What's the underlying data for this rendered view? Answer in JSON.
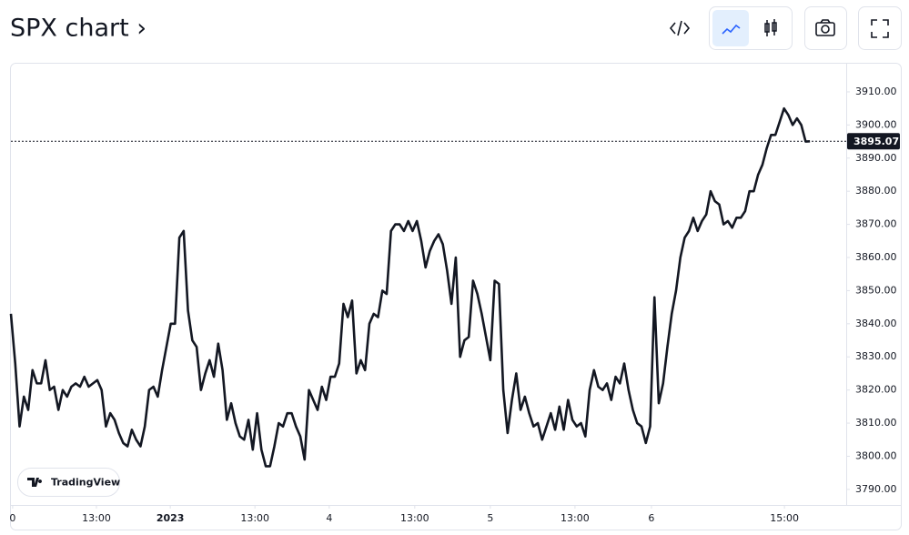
{
  "header": {
    "title": "SPX chart ›"
  },
  "watermark": "TradingView",
  "chart_data": {
    "type": "line",
    "series": [
      {
        "name": "SPX",
        "color": "#131722",
        "values": [
          3843,
          3828,
          3809,
          3818,
          3814,
          3826,
          3822,
          3822,
          3829,
          3820,
          3821,
          3814,
          3820,
          3818,
          3821,
          3822,
          3821,
          3824,
          3821,
          3822,
          3823,
          3820,
          3809,
          3813,
          3811,
          3807,
          3804,
          3803,
          3808,
          3805,
          3803,
          3809,
          3820,
          3821,
          3818,
          3826,
          3833,
          3840,
          3840,
          3866,
          3868,
          3844,
          3835,
          3833,
          3820,
          3825,
          3829,
          3824,
          3834,
          3826,
          3811,
          3816,
          3810,
          3806,
          3805,
          3811,
          3802,
          3813,
          3802,
          3797,
          3797,
          3803,
          3810,
          3809,
          3813,
          3813,
          3809,
          3806,
          3799,
          3820,
          3817,
          3814,
          3821,
          3817,
          3824,
          3824,
          3828,
          3846,
          3842,
          3847,
          3825,
          3829,
          3826,
          3840,
          3843,
          3842,
          3850,
          3849,
          3868,
          3870,
          3870,
          3868,
          3871,
          3868,
          3871,
          3865,
          3857,
          3862,
          3865,
          3867,
          3864,
          3856,
          3846,
          3860,
          3830,
          3835,
          3836,
          3853,
          3849,
          3843,
          3836,
          3829,
          3853,
          3852,
          3820,
          3807,
          3817,
          3825,
          3814,
          3818,
          3813,
          3809,
          3810,
          3805,
          3809,
          3813,
          3808,
          3815,
          3808,
          3817,
          3811,
          3809,
          3810,
          3806,
          3820,
          3826,
          3821,
          3820,
          3822,
          3817,
          3824,
          3822,
          3828,
          3820,
          3814,
          3810,
          3809,
          3804,
          3809,
          3848,
          3816,
          3822,
          3833,
          3843,
          3850,
          3860,
          3866,
          3868,
          3872,
          3868,
          3871,
          3873,
          3880,
          3877,
          3876,
          3870,
          3871,
          3869,
          3872,
          3872,
          3874,
          3880,
          3880,
          3885,
          3888,
          3893,
          3897,
          3897,
          3901,
          3905,
          3903,
          3900,
          3902,
          3900,
          3895,
          3895.07
        ]
      }
    ],
    "xlim": [
      0,
      193.4
    ],
    "xticks": [
      {
        "value": 0.4,
        "label": "0"
      },
      {
        "value": 19.8,
        "label": "13:00"
      },
      {
        "value": 36.9,
        "label": "2023"
      },
      {
        "value": 56.5,
        "label": "13:00"
      },
      {
        "value": 73.7,
        "label": "4"
      },
      {
        "value": 93.5,
        "label": "13:00"
      },
      {
        "value": 111,
        "label": "5"
      },
      {
        "value": 130.6,
        "label": "13:00"
      },
      {
        "value": 148.3,
        "label": "6"
      },
      {
        "value": 179.1,
        "label": "15:00"
      }
    ],
    "ylim": [
      3785.3,
      3918.5
    ],
    "yticks": [
      {
        "value": 3790,
        "label": "3790.00"
      },
      {
        "value": 3800,
        "label": "3800.00"
      },
      {
        "value": 3810,
        "label": "3810.00"
      },
      {
        "value": 3820,
        "label": "3820.00"
      },
      {
        "value": 3830,
        "label": "3830.00"
      },
      {
        "value": 3840,
        "label": "3840.00"
      },
      {
        "value": 3850,
        "label": "3850.00"
      },
      {
        "value": 3860,
        "label": "3860.00"
      },
      {
        "value": 3870,
        "label": "3870.00"
      },
      {
        "value": 3880,
        "label": "3880.00"
      },
      {
        "value": 3890,
        "label": "3890.00"
      },
      {
        "value": 3900,
        "label": "3900.00"
      },
      {
        "value": 3910,
        "label": "3910.00"
      }
    ],
    "price_line": {
      "value": 3895.07,
      "label": "3895.07"
    }
  }
}
